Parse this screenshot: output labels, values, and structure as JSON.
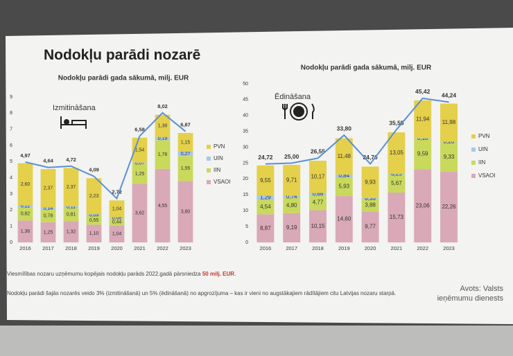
{
  "title": "Nodokļu parādi nozarē",
  "notes": [
    {
      "parts": [
        "Viesmīlības nozaru uzņēmumu kopējais nodokļu parāds 2022.gadā pārsniedza",
        "50 milj. EUR",
        "."
      ]
    },
    {
      "parts": [
        "Nodokļu parādi šajās nozarēs veido 3% (izmitināšanā) un 5% (ēdināšanā) no apgrozījuma – kas ir vieni no augstākajiem rādītājiem citu Latvijas nozaru starpā."
      ]
    }
  ],
  "source": "Avots: Valsts ieņēmumu dienests",
  "chart_data": [
    {
      "type": "bar",
      "stacked": true,
      "title": "Nodokļu parādi gada sākumā, milj. EUR",
      "annotation": "Izmitināšana",
      "categories": [
        "2016",
        "2017",
        "2018",
        "2019",
        "2020",
        "2021",
        "2022",
        "2023"
      ],
      "series": [
        {
          "name": "VSAOI",
          "color": "#d9a9b8",
          "values": [
            1.36,
            1.25,
            1.32,
            1.1,
            1.04,
            3.62,
            4.55,
            3.8
          ],
          "value_labels": [
            "1,36",
            "1,25",
            "1,32",
            "1,10",
            "1,04",
            "3,62",
            "4,55",
            "3,80"
          ]
        },
        {
          "name": "IIN",
          "color": "#c9d95c",
          "values": [
            0.82,
            0.78,
            0.81,
            0.55,
            0.44,
            1.25,
            1.78,
            1.55
          ],
          "value_labels": [
            "0,82",
            "0,78",
            "0,81",
            "0,55",
            "0,44",
            "1,25",
            "1,78",
            "1,55"
          ]
        },
        {
          "name": "UIN",
          "color": "#a6c8e8",
          "values": [
            0.12,
            0.14,
            0.11,
            0.09,
            0.08,
            0.07,
            0.19,
            0.27
          ],
          "value_labels": [
            "0,12",
            "0,14",
            "0,11",
            "0,09",
            "0,08",
            "0,07",
            "0,19",
            "0,27"
          ]
        },
        {
          "name": "PVN",
          "color": "#e4d04a",
          "values": [
            2.6,
            2.37,
            2.37,
            2.23,
            1.04,
            1.54,
            1.38,
            1.15
          ],
          "value_labels": [
            "2,60",
            "2,37",
            "2,37",
            "2,23",
            "1,04",
            "1,54",
            "1,38",
            "1,15"
          ]
        }
      ],
      "line": {
        "color": "#5b8fd6",
        "values": [
          4.97,
          4.64,
          4.72,
          4.09,
          2.72,
          6.58,
          8.02,
          6.87
        ],
        "value_labels": [
          "4,97",
          "4,64",
          "4,72",
          "4,09",
          "2,72",
          "6,58",
          "8,02",
          "6,87"
        ]
      },
      "ylim": [
        0,
        9
      ],
      "yticks": [
        0,
        1,
        2,
        3,
        4,
        5,
        6,
        7,
        8,
        9
      ],
      "legend": "right",
      "grid": false
    },
    {
      "type": "bar",
      "stacked": true,
      "title": "Nodokļu parādi gada sākumā, milj. EUR",
      "annotation": "Ēdināšana",
      "categories": [
        "2016",
        "2017",
        "2018",
        "2019",
        "2020",
        "2021",
        "2022",
        "2023"
      ],
      "series": [
        {
          "name": "VSAOI",
          "color": "#d9a9b8",
          "values": [
            8.87,
            9.19,
            10.15,
            14.6,
            9.77,
            15.73,
            23.06,
            22.26
          ],
          "value_labels": [
            "8,87",
            "9,19",
            "10,15",
            "14,60",
            "9,77",
            "15,73",
            "23,06",
            "22,26"
          ]
        },
        {
          "name": "IIN",
          "color": "#c9d95c",
          "values": [
            4.54,
            4.8,
            4.77,
            5.93,
            3.88,
            5.67,
            9.59,
            9.33
          ],
          "value_labels": [
            "4,54",
            "4,80",
            "4,77",
            "5,93",
            "3,88",
            "5,67",
            "9,59",
            "9,33"
          ]
        },
        {
          "name": "UIN",
          "color": "#a6c8e8",
          "values": [
            1.29,
            0.74,
            0.66,
            0.84,
            0.33,
            0.25,
            0.18,
            0.2
          ],
          "value_labels": [
            "1,29",
            "0,74",
            "0,66",
            "0,84",
            "0,33",
            "0,25",
            "0,18",
            "0,20"
          ]
        },
        {
          "name": "PVN",
          "color": "#e4d04a",
          "values": [
            9.55,
            9.71,
            10.17,
            11.48,
            9.93,
            13.05,
            11.94,
            11.98
          ],
          "value_labels": [
            "9,55",
            "9,71",
            "10,17",
            "11,48",
            "9,93",
            "13,05",
            "11,94",
            "11,98"
          ]
        }
      ],
      "line": {
        "color": "#5b8fd6",
        "values": [
          24.72,
          25.0,
          26.55,
          33.8,
          24.76,
          35.55,
          45.42,
          44.24
        ],
        "value_labels": [
          "24,72",
          "25,00",
          "26,55",
          "33,80",
          "24,76",
          "35,55",
          "45,42",
          "44,24"
        ]
      },
      "ylim": [
        0,
        50
      ],
      "yticks": [
        0,
        5,
        10,
        15,
        20,
        25,
        30,
        35,
        40,
        45,
        50
      ],
      "legend": "right",
      "grid": false
    }
  ]
}
